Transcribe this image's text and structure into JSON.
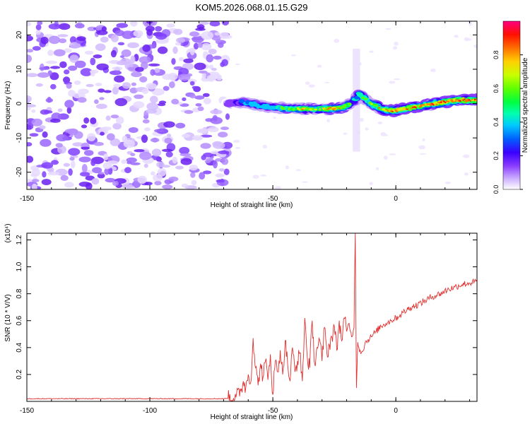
{
  "title": "KOM5.2026.068.01.15.G29",
  "chart_data": [
    {
      "type": "heatmap",
      "title": "KOM5.2026.068.01.15.G29",
      "xlabel": "Height of straight line (km)",
      "ylabel": "Frequency (Hz)",
      "xlim": [
        -150,
        33
      ],
      "ylim": [
        -25,
        24
      ],
      "xticks": [
        "-150",
        "-100",
        "-50",
        "0"
      ],
      "xtick_values": [
        -150,
        -100,
        -50,
        0
      ],
      "yticks": [
        "20",
        "10",
        "0",
        "-10",
        "-20"
      ],
      "ytick_values": [
        20,
        10,
        0,
        -10,
        -20
      ],
      "noise_region_x": [
        -150,
        -68
      ],
      "ridge": {
        "x": [
          -68,
          -62,
          -56,
          -50,
          -44,
          -38,
          -32,
          -26,
          -21,
          -17,
          -15,
          -12,
          -9,
          -6,
          -3,
          0,
          4,
          8,
          12,
          16,
          20,
          25,
          30,
          33
        ],
        "y": [
          0,
          0.5,
          -0.5,
          -1.0,
          -1.5,
          -1.5,
          -1.5,
          -1.5,
          -1.0,
          0.5,
          3.0,
          1.0,
          -0.5,
          -1.5,
          -2.0,
          -2.0,
          -1.5,
          -1.0,
          -0.5,
          0,
          0.5,
          1.0,
          1.0,
          1.0
        ],
        "amplitude": [
          0.35,
          0.5,
          0.55,
          0.6,
          0.7,
          0.8,
          0.75,
          0.85,
          0.8,
          0.6,
          0.65,
          0.7,
          0.75,
          0.8,
          0.85,
          0.9,
          0.85,
          0.9,
          0.85,
          0.9,
          0.95,
          0.95,
          0.95,
          0.95
        ]
      },
      "colorbar": {
        "label": "Normalized spectral amplitude",
        "range": [
          0,
          1
        ],
        "ticks": [
          "0.0",
          "0.2",
          "0.4",
          "0.6",
          "0.8"
        ],
        "tick_values": [
          0,
          0.2,
          0.4,
          0.6,
          0.8
        ]
      }
    },
    {
      "type": "line",
      "xlabel": "Height of straight line (km)",
      "ylabel": "SNR (10 * V/V)",
      "scale_label": "(x10⁴)",
      "xlim": [
        -150,
        33
      ],
      "ylim": [
        0,
        1.25
      ],
      "xticks": [
        "-150",
        "-100",
        "-50",
        "0"
      ],
      "xtick_values": [
        -150,
        -100,
        -50,
        0
      ],
      "yticks": [
        "0.2",
        "0.4",
        "0.6",
        "0.8",
        "1.0",
        "1.2"
      ],
      "ytick_values": [
        0.2,
        0.4,
        0.6,
        0.8,
        1.0,
        1.2
      ],
      "color": "#e03030",
      "series": [
        {
          "name": "SNR",
          "x": [
            -150,
            -140,
            -130,
            -120,
            -110,
            -100,
            -90,
            -80,
            -70,
            -65,
            -63,
            -62,
            -61,
            -60,
            -59,
            -58,
            -57,
            -56,
            -55,
            -54,
            -53,
            -52,
            -51,
            -50,
            -49,
            -48,
            -47,
            -46,
            -45,
            -44,
            -43,
            -42,
            -41,
            -40,
            -39,
            -38,
            -37,
            -36,
            -35,
            -34,
            -33,
            -32,
            -31,
            -30,
            -29,
            -28,
            -27,
            -26,
            -25,
            -24,
            -23,
            -22,
            -21,
            -20,
            -19,
            -18,
            -17,
            -16.5,
            -16,
            -15.5,
            -15,
            -14,
            -12,
            -10,
            -8,
            -6,
            -4,
            -2,
            0,
            3,
            6,
            9,
            12,
            15,
            18,
            21,
            24,
            27,
            30,
            33
          ],
          "values": [
            0.02,
            0.02,
            0.02,
            0.02,
            0.02,
            0.02,
            0.02,
            0.02,
            0.02,
            0.03,
            0.08,
            0.15,
            0.1,
            0.2,
            0.14,
            0.47,
            0.25,
            0.12,
            0.28,
            0.18,
            0.3,
            0.16,
            0.35,
            0.05,
            0.3,
            0.22,
            0.38,
            0.2,
            0.45,
            0.28,
            0.15,
            0.4,
            0.22,
            0.3,
            0.36,
            0.15,
            0.62,
            0.33,
            0.25,
            0.6,
            0.28,
            0.4,
            0.46,
            0.3,
            0.55,
            0.35,
            0.42,
            0.48,
            0.56,
            0.38,
            0.6,
            0.45,
            0.62,
            0.52,
            0.58,
            0.48,
            0.55,
            1.25,
            0.1,
            0.44,
            0.4,
            0.36,
            0.45,
            0.48,
            0.52,
            0.56,
            0.58,
            0.6,
            0.62,
            0.66,
            0.7,
            0.72,
            0.75,
            0.78,
            0.8,
            0.83,
            0.85,
            0.87,
            0.88,
            0.89
          ]
        }
      ]
    }
  ]
}
